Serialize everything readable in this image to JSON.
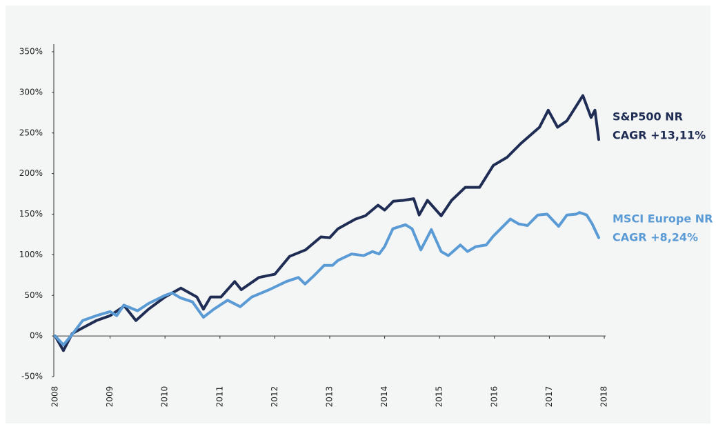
{
  "chart_data": {
    "type": "line",
    "xlim": [
      2008,
      2018
    ],
    "xticks": [
      2008,
      2009,
      2010,
      2011,
      2012,
      2013,
      2014,
      2015,
      2016,
      2017,
      2018
    ],
    "ylim": [
      -50,
      350
    ],
    "yticks": [
      {
        "value": -50,
        "label": "-50%"
      },
      {
        "value": 0,
        "label": "0%"
      },
      {
        "value": 50,
        "label": "50%"
      },
      {
        "value": 100,
        "label": "100%"
      },
      {
        "value": 150,
        "label": "150%"
      },
      {
        "value": 200,
        "label": "200%"
      },
      {
        "value": 250,
        "label": "250%"
      },
      {
        "value": 300,
        "label": "300%"
      },
      {
        "value": 350,
        "label": "350%"
      }
    ],
    "series": [
      {
        "name": "S&P500 NR",
        "annotation": "CAGR +13,11%",
        "color": "#1f2d55",
        "x": [
          2008.0,
          2008.15,
          2008.31,
          2008.5,
          2008.75,
          2009.0,
          2009.26,
          2009.47,
          2009.7,
          2010.0,
          2010.29,
          2010.58,
          2010.7,
          2010.83,
          2011.02,
          2011.27,
          2011.39,
          2011.71,
          2012.0,
          2012.27,
          2012.56,
          2012.84,
          2013.0,
          2013.15,
          2013.47,
          2013.65,
          2013.88,
          2014.0,
          2014.16,
          2014.34,
          2014.53,
          2014.63,
          2014.78,
          2015.03,
          2015.22,
          2015.47,
          2015.73,
          2015.98,
          2016.23,
          2016.48,
          2016.82,
          2016.98,
          2017.15,
          2017.32,
          2017.61,
          2017.76,
          2017.83,
          2017.9
        ],
        "values": [
          0,
          -18,
          3,
          10,
          19,
          25,
          37,
          19,
          33,
          48,
          59,
          48,
          33,
          48,
          48,
          67,
          57,
          72,
          76,
          98,
          106,
          122,
          121,
          132,
          144,
          148,
          161,
          155,
          166,
          167,
          169,
          149,
          167,
          148,
          167,
          183,
          183,
          210,
          220,
          237,
          257,
          278,
          257,
          265,
          296,
          269,
          278,
          242
        ]
      },
      {
        "name": "MSCI Europe NR",
        "annotation": "CAGR +8,24%",
        "color": "#5b9bd5",
        "x": [
          2008.0,
          2008.15,
          2008.31,
          2008.5,
          2008.75,
          2009.0,
          2009.12,
          2009.25,
          2009.5,
          2009.7,
          2010.0,
          2010.13,
          2010.28,
          2010.5,
          2010.7,
          2010.89,
          2011.14,
          2011.37,
          2011.58,
          2011.9,
          2012.21,
          2012.43,
          2012.55,
          2012.71,
          2012.9,
          2013.05,
          2013.15,
          2013.4,
          2013.62,
          2013.78,
          2013.9,
          2014.0,
          2014.15,
          2014.38,
          2014.5,
          2014.66,
          2014.85,
          2015.03,
          2015.16,
          2015.38,
          2015.51,
          2015.66,
          2015.85,
          2015.98,
          2016.29,
          2016.44,
          2016.6,
          2016.79,
          2016.96,
          2017.17,
          2017.32,
          2017.49,
          2017.55,
          2017.68,
          2017.78,
          2017.9
        ],
        "values": [
          0,
          -11,
          2,
          19,
          25,
          30,
          25,
          38,
          31,
          40,
          50,
          53,
          47,
          42,
          23,
          33,
          44,
          36,
          48,
          57,
          67,
          72,
          64,
          74,
          87,
          87,
          93,
          101,
          99,
          104,
          101,
          110,
          132,
          137,
          132,
          106,
          131,
          104,
          99,
          112,
          104,
          110,
          112,
          123,
          144,
          138,
          136,
          149,
          150,
          135,
          149,
          150,
          152,
          149,
          138,
          121
        ]
      }
    ]
  }
}
